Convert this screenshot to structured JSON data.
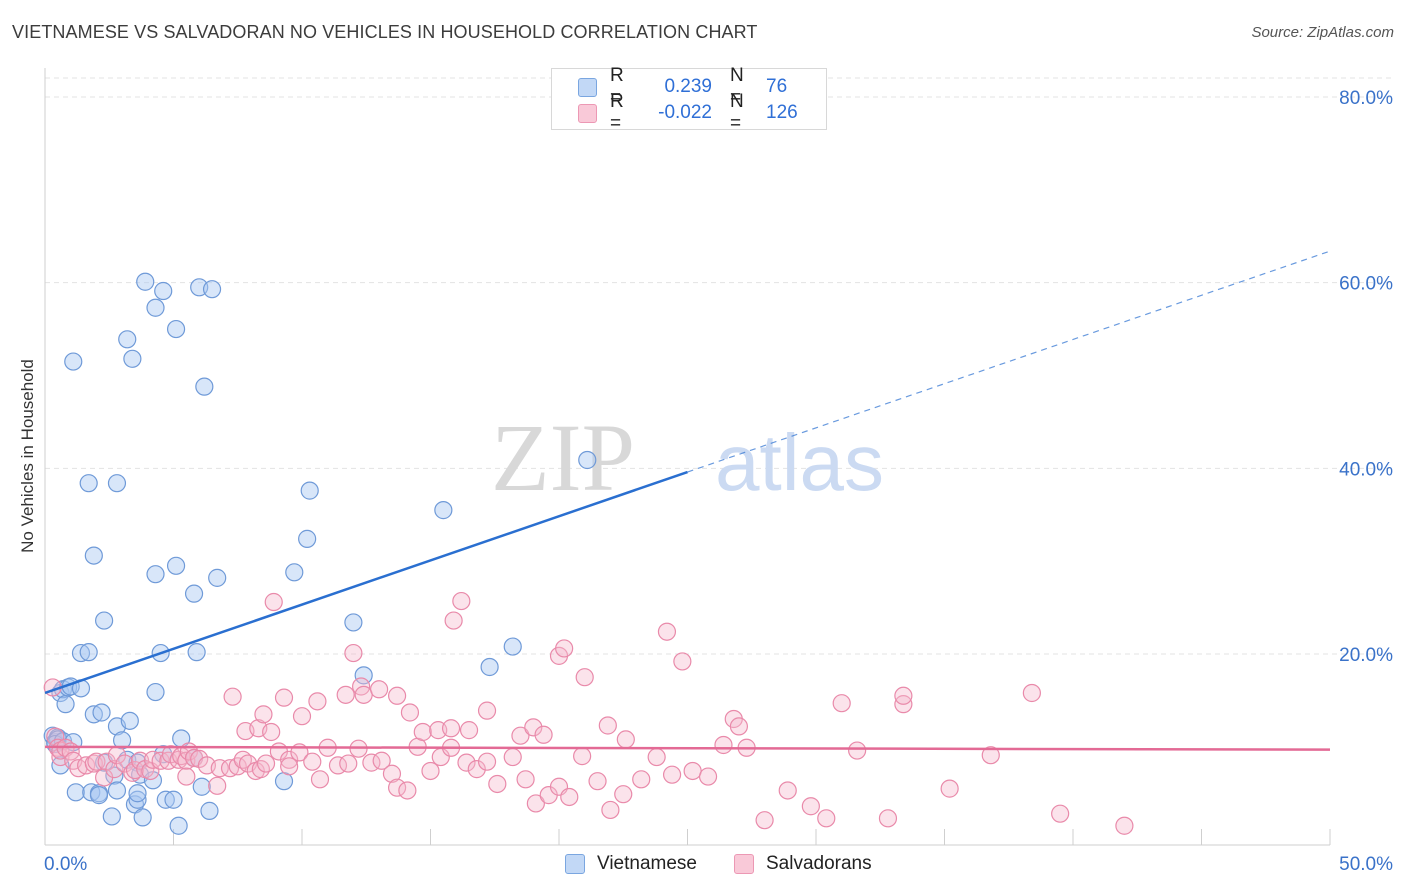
{
  "title": "VIETNAMESE VS SALVADORAN NO VEHICLES IN HOUSEHOLD CORRELATION CHART",
  "source": "Source: ZipAtlas.com",
  "watermark": {
    "zip": "ZIP",
    "atlas": "atlas"
  },
  "legend": {
    "rows": [
      {
        "r_label": "R =",
        "r_value": "0.239",
        "n_label": "N =",
        "n_value": "76"
      },
      {
        "r_label": "R =",
        "r_value": "-0.022",
        "n_label": "N =",
        "n_value": "126"
      }
    ]
  },
  "bottom_legend": {
    "vietnamese": "Vietnamese",
    "salvadorans": "Salvadorans"
  },
  "colors": {
    "vietnamese_fill": "#a9c8f2",
    "vietnamese_stroke": "#6f9ad8",
    "vietnamese_line": "#2a6fd0",
    "salvadoran_fill": "#f6b8cc",
    "salvadoran_stroke": "#e98aaa",
    "salvadoran_line": "#e36a95",
    "axis_text": "#3a72c9",
    "grid": "#e3e3e3"
  },
  "chart_data": {
    "type": "scatter",
    "title": "VIETNAMESE VS SALVADORAN NO VEHICLES IN HOUSEHOLD CORRELATION CHART",
    "xlabel": "",
    "ylabel": "No Vehicles in Household",
    "xlim": [
      0,
      50
    ],
    "ylim": [
      0,
      84
    ],
    "x_tick_labels": [
      {
        "value": 0,
        "label": "0.0%"
      },
      {
        "value": 50,
        "label": "50.0%"
      }
    ],
    "y_tick_labels": [
      {
        "value": 20,
        "label": "20.0%"
      },
      {
        "value": 40,
        "label": "40.0%"
      },
      {
        "value": 60,
        "label": "60.0%"
      },
      {
        "value": 80,
        "label": "80.0%"
      }
    ],
    "grid": true,
    "legend_position": "top-center",
    "series": [
      {
        "name": "Vietnamese",
        "r": 0.239,
        "n": 76,
        "trend": {
          "x0": 0,
          "y0": 15.8,
          "x1": 25,
          "y1": 39.6,
          "dashed_to_x": 50,
          "dashed_to_y": 63.4
        },
        "points": [
          [
            0.3,
            11.2
          ],
          [
            0.4,
            10.5
          ],
          [
            0.5,
            11.0
          ],
          [
            0.6,
            8.0
          ],
          [
            0.5,
            10.8
          ],
          [
            0.4,
            10.3
          ],
          [
            0.7,
            10.6
          ],
          [
            1.1,
            10.5
          ],
          [
            0.6,
            15.8
          ],
          [
            0.7,
            16.2
          ],
          [
            0.8,
            14.6
          ],
          [
            0.9,
            16.4
          ],
          [
            1.0,
            16.5
          ],
          [
            1.4,
            16.3
          ],
          [
            1.4,
            20.1
          ],
          [
            1.7,
            20.2
          ],
          [
            1.1,
            51.5
          ],
          [
            1.7,
            38.4
          ],
          [
            1.9,
            30.6
          ],
          [
            2.3,
            23.6
          ],
          [
            1.9,
            13.5
          ],
          [
            2.2,
            13.7
          ],
          [
            2.8,
            12.2
          ],
          [
            3.3,
            12.8
          ],
          [
            2.8,
            38.4
          ],
          [
            3.2,
            53.9
          ],
          [
            3.4,
            51.8
          ],
          [
            3.9,
            60.1
          ],
          [
            4.3,
            57.3
          ],
          [
            4.6,
            59.1
          ],
          [
            5.1,
            55.0
          ],
          [
            6.0,
            59.5
          ],
          [
            6.5,
            59.3
          ],
          [
            6.2,
            48.8
          ],
          [
            4.3,
            28.6
          ],
          [
            5.1,
            29.5
          ],
          [
            5.8,
            26.5
          ],
          [
            6.7,
            28.2
          ],
          [
            4.5,
            20.1
          ],
          [
            5.9,
            20.2
          ],
          [
            4.3,
            15.9
          ],
          [
            5.3,
            10.9
          ],
          [
            3.0,
            10.7
          ],
          [
            2.3,
            8.3
          ],
          [
            3.2,
            8.6
          ],
          [
            3.6,
            8.3
          ],
          [
            4.6,
            9.2
          ],
          [
            5.8,
            8.8
          ],
          [
            2.7,
            6.9
          ],
          [
            3.7,
            7.0
          ],
          [
            4.2,
            6.4
          ],
          [
            1.2,
            5.1
          ],
          [
            1.8,
            5.1
          ],
          [
            2.1,
            5.0
          ],
          [
            2.1,
            4.8
          ],
          [
            2.8,
            5.3
          ],
          [
            3.5,
            3.8
          ],
          [
            3.6,
            4.3
          ],
          [
            3.6,
            5.0
          ],
          [
            4.7,
            4.3
          ],
          [
            5.0,
            4.3
          ],
          [
            2.6,
            2.5
          ],
          [
            3.8,
            2.4
          ],
          [
            6.1,
            5.7
          ],
          [
            6.4,
            3.1
          ],
          [
            5.2,
            1.5
          ],
          [
            9.3,
            6.3
          ],
          [
            10.3,
            37.6
          ],
          [
            10.2,
            32.4
          ],
          [
            9.7,
            28.8
          ],
          [
            12.0,
            23.4
          ],
          [
            12.4,
            17.7
          ],
          [
            15.5,
            35.5
          ],
          [
            17.3,
            18.6
          ],
          [
            18.2,
            20.8
          ],
          [
            21.1,
            40.9
          ]
        ]
      },
      {
        "name": "Salvadorans",
        "r": -0.022,
        "n": 126,
        "trend": {
          "x0": 0,
          "y0": 10.0,
          "x1": 50,
          "y1": 9.7
        },
        "points": [
          [
            0.3,
            16.4
          ],
          [
            0.4,
            11.1
          ],
          [
            0.5,
            9.9
          ],
          [
            0.6,
            8.9
          ],
          [
            0.6,
            9.6
          ],
          [
            0.8,
            9.9
          ],
          [
            1.0,
            9.5
          ],
          [
            1.1,
            8.5
          ],
          [
            1.3,
            7.7
          ],
          [
            1.6,
            8.0
          ],
          [
            1.9,
            8.2
          ],
          [
            2.0,
            8.4
          ],
          [
            2.4,
            8.4
          ],
          [
            2.3,
            6.7
          ],
          [
            2.7,
            7.6
          ],
          [
            2.8,
            9.1
          ],
          [
            3.1,
            8.2
          ],
          [
            3.4,
            7.2
          ],
          [
            3.5,
            7.5
          ],
          [
            3.7,
            8.5
          ],
          [
            3.9,
            7.6
          ],
          [
            4.1,
            7.4
          ],
          [
            4.2,
            8.6
          ],
          [
            4.5,
            8.5
          ],
          [
            4.8,
            8.5
          ],
          [
            4.9,
            9.2
          ],
          [
            5.2,
            8.6
          ],
          [
            5.3,
            9.0
          ],
          [
            5.5,
            8.5
          ],
          [
            5.5,
            6.8
          ],
          [
            5.6,
            9.5
          ],
          [
            5.8,
            8.8
          ],
          [
            6.0,
            8.7
          ],
          [
            6.3,
            8.0
          ],
          [
            6.7,
            5.8
          ],
          [
            6.8,
            7.7
          ],
          [
            7.2,
            7.7
          ],
          [
            7.5,
            7.9
          ],
          [
            7.7,
            8.6
          ],
          [
            7.9,
            8.2
          ],
          [
            8.2,
            7.4
          ],
          [
            8.4,
            7.6
          ],
          [
            8.6,
            8.2
          ],
          [
            9.1,
            9.5
          ],
          [
            9.5,
            8.6
          ],
          [
            9.5,
            7.9
          ],
          [
            9.9,
            9.4
          ],
          [
            10.4,
            8.4
          ],
          [
            10.7,
            6.5
          ],
          [
            11.0,
            9.9
          ],
          [
            11.4,
            8.0
          ],
          [
            11.8,
            8.2
          ],
          [
            12.2,
            9.8
          ],
          [
            12.7,
            8.3
          ],
          [
            13.1,
            8.5
          ],
          [
            13.5,
            7.1
          ],
          [
            13.7,
            5.6
          ],
          [
            14.1,
            5.3
          ],
          [
            14.5,
            10.0
          ],
          [
            15.0,
            7.4
          ],
          [
            15.4,
            8.9
          ],
          [
            15.8,
            9.9
          ],
          [
            16.4,
            8.3
          ],
          [
            16.8,
            7.6
          ],
          [
            17.2,
            8.4
          ],
          [
            17.6,
            6.0
          ],
          [
            18.2,
            8.9
          ],
          [
            18.7,
            6.5
          ],
          [
            19.1,
            3.9
          ],
          [
            19.6,
            4.8
          ],
          [
            20.0,
            5.7
          ],
          [
            20.4,
            4.6
          ],
          [
            20.9,
            9.0
          ],
          [
            21.5,
            6.3
          ],
          [
            22.0,
            3.2
          ],
          [
            22.5,
            4.9
          ],
          [
            23.2,
            6.5
          ],
          [
            23.8,
            8.9
          ],
          [
            24.4,
            7.0
          ],
          [
            25.2,
            7.4
          ],
          [
            25.8,
            6.8
          ],
          [
            26.4,
            10.2
          ],
          [
            27.3,
            9.9
          ],
          [
            28.0,
            2.1
          ],
          [
            28.9,
            5.3
          ],
          [
            29.8,
            3.6
          ],
          [
            30.4,
            2.3
          ],
          [
            31.6,
            9.6
          ],
          [
            32.8,
            2.3
          ],
          [
            33.4,
            14.6
          ],
          [
            35.2,
            5.5
          ],
          [
            36.8,
            9.1
          ],
          [
            39.5,
            2.8
          ],
          [
            42.0,
            1.5
          ],
          [
            7.8,
            11.7
          ],
          [
            8.3,
            12.0
          ],
          [
            8.5,
            13.5
          ],
          [
            8.8,
            11.6
          ],
          [
            9.3,
            15.3
          ],
          [
            10.0,
            13.3
          ],
          [
            10.6,
            14.9
          ],
          [
            11.7,
            15.6
          ],
          [
            12.0,
            20.1
          ],
          [
            12.3,
            16.5
          ],
          [
            12.4,
            15.6
          ],
          [
            13.0,
            16.2
          ],
          [
            13.7,
            15.5
          ],
          [
            14.2,
            13.7
          ],
          [
            14.7,
            11.6
          ],
          [
            15.3,
            11.8
          ],
          [
            15.8,
            12.0
          ],
          [
            16.5,
            11.8
          ],
          [
            17.2,
            13.9
          ],
          [
            18.5,
            11.2
          ],
          [
            19.0,
            12.1
          ],
          [
            19.4,
            11.3
          ],
          [
            20.0,
            19.8
          ],
          [
            20.2,
            20.6
          ],
          [
            21.0,
            17.5
          ],
          [
            21.9,
            12.3
          ],
          [
            22.6,
            10.8
          ],
          [
            24.2,
            22.4
          ],
          [
            24.8,
            19.2
          ],
          [
            26.8,
            13.0
          ],
          [
            27.0,
            12.2
          ],
          [
            31.0,
            14.7
          ],
          [
            33.4,
            15.5
          ],
          [
            38.4,
            15.8
          ],
          [
            7.3,
            15.4
          ],
          [
            8.9,
            25.6
          ],
          [
            15.9,
            23.6
          ],
          [
            16.2,
            25.7
          ]
        ]
      }
    ]
  }
}
